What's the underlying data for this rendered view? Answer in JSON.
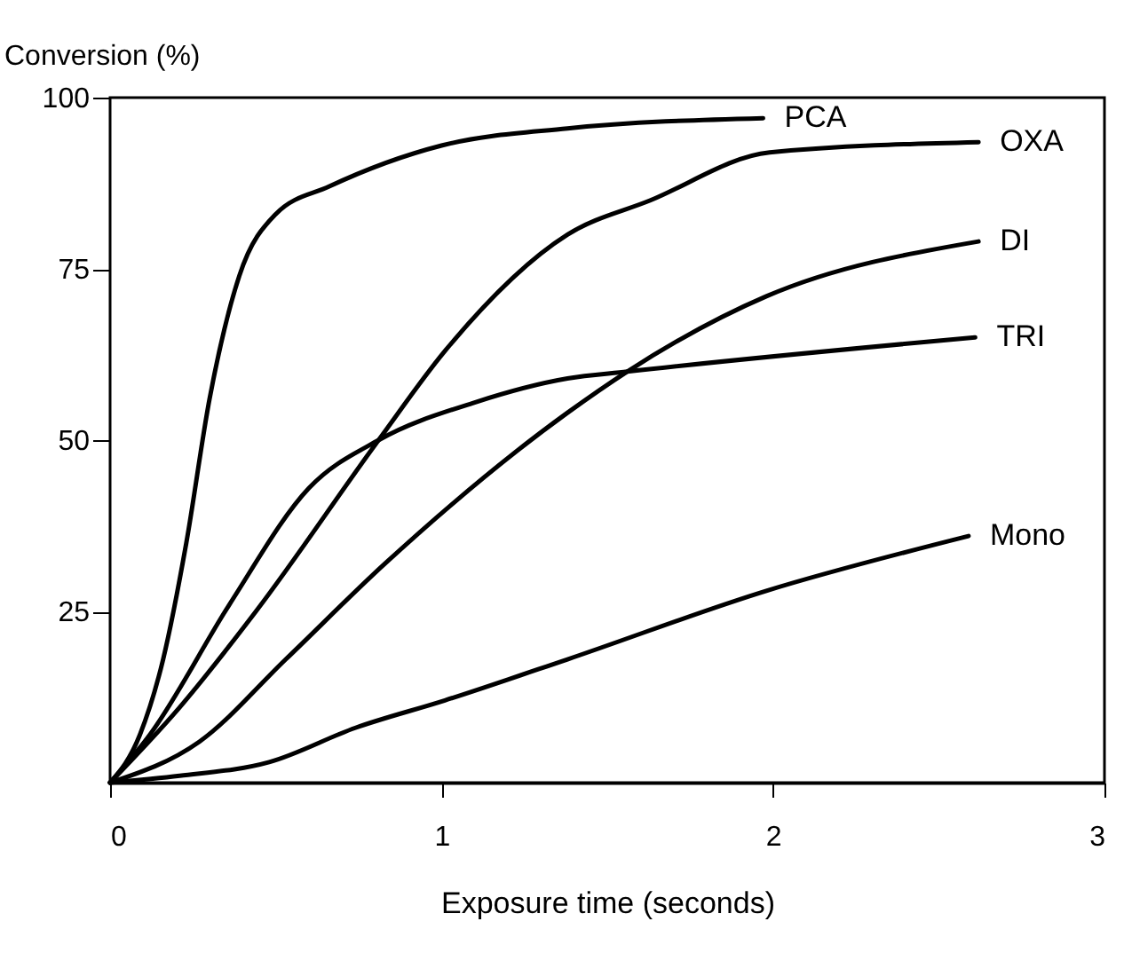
{
  "chart_data": {
    "type": "line",
    "xlabel": "Exposure time (seconds)",
    "ylabel": "Conversion (%)",
    "xlim": [
      0,
      3
    ],
    "xticks": [
      0,
      1,
      2,
      3
    ],
    "ylim": [
      0,
      100
    ],
    "yticks": [
      25,
      50,
      75,
      100
    ],
    "grid": false,
    "legend": false,
    "marker": "none",
    "line_style": "solid",
    "series": [
      {
        "name": "PCA",
        "color": "#000000",
        "x": [
          0,
          0.09,
          0.16,
          0.23,
          0.3,
          0.39,
          0.5,
          0.66,
          1.0,
          1.38,
          1.97
        ],
        "values": [
          0,
          7,
          18,
          35,
          56,
          74,
          83,
          87,
          93,
          95.5,
          97
        ]
      },
      {
        "name": "OXA",
        "color": "#000000",
        "x": [
          0,
          0.21,
          0.44,
          0.81,
          1.01,
          1.38,
          1.63,
          1.99,
          2.62
        ],
        "values": [
          0,
          11,
          25,
          50,
          63,
          80,
          85,
          92,
          93.5
        ]
      },
      {
        "name": "DI",
        "color": "#000000",
        "x": [
          0,
          0.27,
          0.53,
          0.83,
          1.38,
          1.56,
          1.98,
          2.62
        ],
        "values": [
          0,
          6,
          18,
          32,
          54,
          60,
          71,
          79
        ]
      },
      {
        "name": "TRI",
        "color": "#000000",
        "x": [
          0,
          0.12,
          0.36,
          0.6,
          0.81,
          1.1,
          1.38,
          1.56,
          2.61
        ],
        "values": [
          0,
          7,
          26,
          43,
          50,
          55.5,
          59,
          60,
          65
        ]
      },
      {
        "name": "Mono",
        "color": "#000000",
        "x": [
          0,
          0.21,
          0.48,
          0.74,
          1.01,
          1.38,
          1.98,
          2.59
        ],
        "values": [
          0,
          1,
          3,
          8,
          12,
          18,
          28,
          36
        ]
      }
    ]
  }
}
